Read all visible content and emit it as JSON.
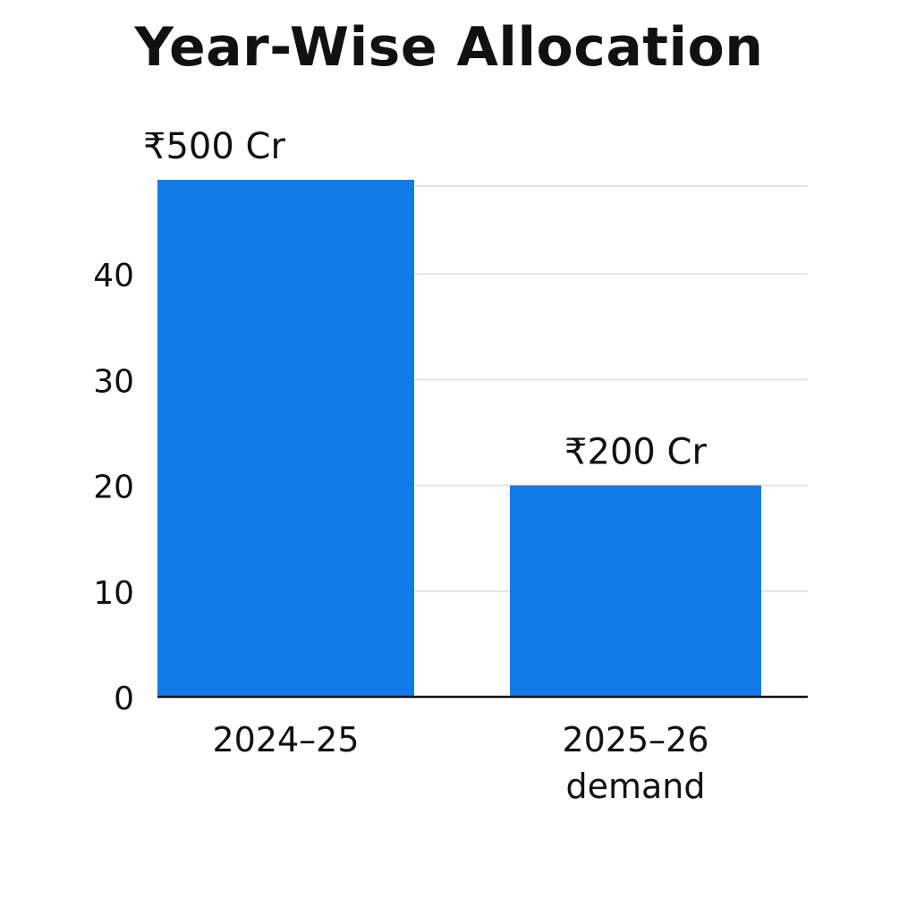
{
  "chart_data": {
    "type": "bar",
    "title": "Year-Wise Allocation",
    "categories": [
      [
        "2024–25"
      ],
      [
        "2025–26",
        "demand"
      ]
    ],
    "values": [
      50,
      20
    ],
    "data_labels": [
      "₹500 Cr",
      "₹200 Cr"
    ],
    "xlabel": "",
    "ylabel": "",
    "yticks": [
      0,
      10,
      20,
      30,
      40
    ],
    "ylim": [
      0,
      50
    ],
    "grid": true,
    "legend": "none",
    "colors": {
      "bar": "#137BE8",
      "grid": "#E3E3E3",
      "axis": "#111111"
    }
  }
}
